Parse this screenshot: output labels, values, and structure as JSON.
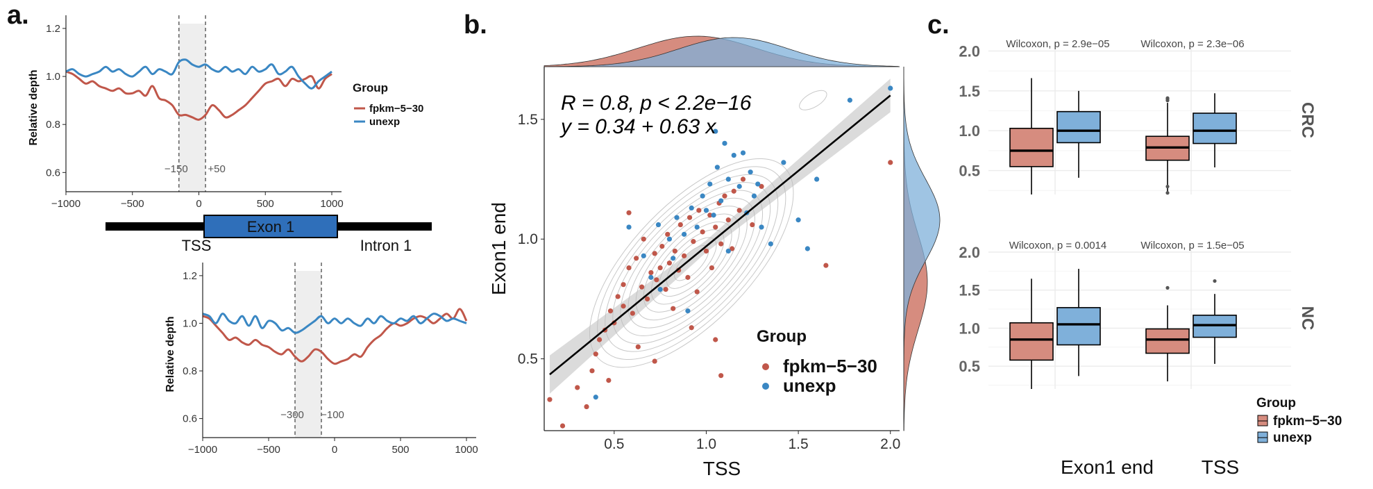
{
  "figure": {
    "panel_labels": [
      "a.",
      "b.",
      "c."
    ]
  },
  "colors": {
    "red": "#c0574a",
    "red_fill": "#d68c7f",
    "blue": "#3a87c3",
    "blue_fill": "#7fb0da",
    "overlap_fill": "#6f7fa8",
    "shade": "#eeeeee",
    "grid": "#ebebeb",
    "contour": "#c8c8c8",
    "exon_box": "#2f6fba"
  },
  "panel_a": {
    "ylabel": "Relative depth",
    "xticks": [
      "−1000",
      "−500",
      "0",
      "500",
      "1000"
    ],
    "yticks": [
      "0.6",
      "0.8",
      "1.0",
      "1.2"
    ],
    "legend": {
      "title": "Group",
      "items": [
        "fpkm−5−30",
        "unexp"
      ]
    },
    "gene_model": {
      "exon": "Exon 1",
      "tss": "TSS",
      "intron": "Intron 1"
    },
    "top_window_labels": [
      "−150",
      "+50"
    ],
    "bottom_window_labels": [
      "−300",
      "−100"
    ]
  },
  "panel_b": {
    "annotation_line1": "R = 0.8, p < 2.2e−16",
    "annotation_line2": "y = 0.34 + 0.63 x",
    "xlabel": "TSS",
    "ylabel": "Exon1 end",
    "xticks": [
      "0.5",
      "1.0",
      "1.5",
      "2.0"
    ],
    "yticks": [
      "0.5",
      "1.0",
      "1.5"
    ],
    "legend": {
      "title": "Group",
      "items": [
        "fpkm−5−30",
        "unexp"
      ]
    }
  },
  "panel_c": {
    "yticks": [
      "0.5",
      "1.0",
      "1.5",
      "2.0"
    ],
    "xticks": [
      "Exon1 end",
      "TSS"
    ],
    "facets": [
      "CRC",
      "NC"
    ],
    "pvalues_top": [
      "Wilcoxon, p = 2.9e−05",
      "Wilcoxon, p = 2.3e−06"
    ],
    "pvalues_bottom": [
      "Wilcoxon, p = 0.0014",
      "Wilcoxon, p = 1.5e−05"
    ],
    "legend": {
      "title": "Group",
      "items": [
        "fpkm−5−30",
        "unexp"
      ]
    }
  },
  "chart_data": [
    {
      "type": "line",
      "panel": "a-top",
      "ylabel": "Relative depth",
      "xlim": [
        -1000,
        1000
      ],
      "ylim": [
        0.52,
        1.22
      ],
      "shaded_window": [
        -150,
        50
      ],
      "x": [
        -1000,
        -950,
        -900,
        -850,
        -800,
        -750,
        -700,
        -650,
        -600,
        -550,
        -500,
        -450,
        -400,
        -350,
        -300,
        -250,
        -200,
        -150,
        -100,
        -50,
        0,
        50,
        100,
        150,
        200,
        250,
        300,
        350,
        400,
        450,
        500,
        550,
        600,
        650,
        700,
        750,
        800,
        850,
        900,
        950,
        1000
      ],
      "series": [
        {
          "name": "fpkm−5−30",
          "values": [
            1.02,
            1.01,
            0.99,
            0.97,
            0.98,
            0.96,
            0.95,
            0.94,
            0.95,
            0.93,
            0.93,
            0.94,
            0.92,
            0.96,
            0.91,
            0.9,
            0.88,
            0.84,
            0.84,
            0.83,
            0.82,
            0.84,
            0.88,
            0.86,
            0.83,
            0.84,
            0.86,
            0.88,
            0.91,
            0.94,
            0.97,
            0.98,
            0.99,
            0.96,
            0.99,
            0.98,
            0.99,
            1.0,
            0.95,
            0.99,
            1.01
          ]
        },
        {
          "name": "unexp",
          "values": [
            1.02,
            1.03,
            1.01,
            1.0,
            1.01,
            1.02,
            1.04,
            1.02,
            1.03,
            1.01,
            1.0,
            1.02,
            1.04,
            1.01,
            1.03,
            1.02,
            1.01,
            1.06,
            1.07,
            1.05,
            1.04,
            1.05,
            1.03,
            1.02,
            1.04,
            1.02,
            1.03,
            1.01,
            1.04,
            1.02,
            1.03,
            1.05,
            1.01,
            1.02,
            1.04,
            1.0,
            0.97,
            0.95,
            0.98,
            1.0,
            1.02
          ]
        }
      ]
    },
    {
      "type": "line",
      "panel": "a-bottom",
      "ylabel": "Relative depth",
      "xlim": [
        -1000,
        1000
      ],
      "ylim": [
        0.52,
        1.22
      ],
      "shaded_window": [
        -300,
        -100
      ],
      "x": [
        -1000,
        -950,
        -900,
        -850,
        -800,
        -750,
        -700,
        -650,
        -600,
        -550,
        -500,
        -450,
        -400,
        -350,
        -300,
        -250,
        -200,
        -150,
        -100,
        -50,
        0,
        50,
        100,
        150,
        200,
        250,
        300,
        350,
        400,
        450,
        500,
        550,
        600,
        650,
        700,
        750,
        800,
        850,
        900,
        950,
        1000
      ],
      "series": [
        {
          "name": "fpkm−5−30",
          "values": [
            1.03,
            1.02,
            0.99,
            0.96,
            0.93,
            0.94,
            0.92,
            0.91,
            0.93,
            0.91,
            0.9,
            0.88,
            0.87,
            0.89,
            0.86,
            0.84,
            0.86,
            0.89,
            0.88,
            0.85,
            0.83,
            0.84,
            0.85,
            0.87,
            0.86,
            0.9,
            0.93,
            0.95,
            0.98,
            1.0,
            0.99,
            1.0,
            1.02,
            1.03,
            1.02,
            1.0,
            1.02,
            1.04,
            1.02,
            1.06,
            1.01
          ]
        },
        {
          "name": "unexp",
          "values": [
            1.04,
            1.03,
            1.0,
            1.04,
            1.01,
            1.0,
            1.03,
            0.99,
            1.03,
            0.98,
            1.01,
            1.0,
            0.97,
            0.98,
            0.96,
            0.97,
            0.99,
            1.01,
            1.03,
            1.0,
            1.02,
            1.0,
            1.02,
            1.0,
            0.99,
            1.02,
            1.0,
            1.03,
            1.01,
            1.0,
            1.02,
            1.01,
            1.03,
            1.0,
            1.02,
            1.04,
            1.03,
            1.01,
            1.02,
            1.01,
            1.0
          ]
        }
      ]
    },
    {
      "type": "scatter",
      "panel": "b",
      "xlabel": "TSS",
      "ylabel": "Exon1 end",
      "xlim": [
        0.12,
        2.05
      ],
      "ylim": [
        0.2,
        1.72
      ],
      "regression": {
        "intercept": 0.34,
        "slope": 0.63
      },
      "series": [
        {
          "name": "fpkm−5−30",
          "points": [
            [
              0.15,
              0.33
            ],
            [
              0.22,
              0.22
            ],
            [
              0.35,
              0.3
            ],
            [
              0.38,
              0.45
            ],
            [
              0.42,
              0.58
            ],
            [
              0.45,
              0.62
            ],
            [
              0.48,
              0.7
            ],
            [
              0.5,
              0.65
            ],
            [
              0.52,
              0.76
            ],
            [
              0.55,
              0.81
            ],
            [
              0.55,
              0.72
            ],
            [
              0.58,
              0.88
            ],
            [
              0.6,
              0.69
            ],
            [
              0.62,
              0.92
            ],
            [
              0.63,
              0.55
            ],
            [
              0.65,
              0.8
            ],
            [
              0.66,
              1.0
            ],
            [
              0.68,
              0.75
            ],
            [
              0.7,
              0.86
            ],
            [
              0.72,
              0.94
            ],
            [
              0.73,
              0.83
            ],
            [
              0.75,
              0.88
            ],
            [
              0.76,
              0.97
            ],
            [
              0.78,
              0.79
            ],
            [
              0.79,
              1.02
            ],
            [
              0.8,
              0.9
            ],
            [
              0.82,
              0.71
            ],
            [
              0.83,
              0.95
            ],
            [
              0.85,
              0.87
            ],
            [
              0.86,
              1.06
            ],
            [
              0.88,
              0.93
            ],
            [
              0.9,
              0.84
            ],
            [
              0.91,
              1.09
            ],
            [
              0.93,
              0.99
            ],
            [
              0.95,
              0.78
            ],
            [
              0.96,
              1.12
            ],
            [
              0.98,
              1.03
            ],
            [
              1.0,
              0.95
            ],
            [
              1.02,
              1.1
            ],
            [
              1.03,
              0.88
            ],
            [
              1.05,
              1.05
            ],
            [
              1.07,
              1.15
            ],
            [
              1.08,
              0.98
            ],
            [
              1.1,
              1.18
            ],
            [
              1.12,
              1.08
            ],
            [
              1.14,
              0.96
            ],
            [
              1.15,
              1.2
            ],
            [
              1.18,
              1.12
            ],
            [
              1.2,
              1.25
            ],
            [
              1.25,
              1.06
            ],
            [
              1.3,
              1.22
            ],
            [
              0.58,
              1.11
            ],
            [
              0.47,
              0.41
            ],
            [
              0.72,
              0.49
            ],
            [
              1.08,
              0.43
            ],
            [
              1.65,
              0.89
            ],
            [
              2.0,
              1.32
            ],
            [
              0.92,
              0.63
            ],
            [
              1.05,
              0.58
            ],
            [
              0.3,
              0.38
            ],
            [
              0.4,
              0.52
            ]
          ]
        },
        {
          "name": "unexp",
          "points": [
            [
              0.4,
              0.34
            ],
            [
              0.58,
              1.05
            ],
            [
              0.66,
              0.93
            ],
            [
              0.74,
              1.06
            ],
            [
              0.8,
              1.0
            ],
            [
              0.84,
              1.09
            ],
            [
              0.88,
              1.02
            ],
            [
              0.92,
              1.13
            ],
            [
              0.95,
              1.05
            ],
            [
              0.98,
              1.18
            ],
            [
              1.0,
              1.12
            ],
            [
              1.02,
              1.23
            ],
            [
              1.04,
              1.1
            ],
            [
              1.06,
              1.3
            ],
            [
              1.08,
              1.16
            ],
            [
              1.1,
              1.4
            ],
            [
              1.12,
              1.25
            ],
            [
              1.15,
              1.35
            ],
            [
              1.18,
              1.22
            ],
            [
              1.2,
              1.36
            ],
            [
              1.22,
              1.11
            ],
            [
              1.24,
              1.28
            ],
            [
              1.26,
              1.18
            ],
            [
              1.28,
              1.23
            ],
            [
              1.3,
              1.05
            ],
            [
              1.35,
              0.98
            ],
            [
              1.42,
              1.32
            ],
            [
              1.5,
              1.08
            ],
            [
              1.55,
              0.96
            ],
            [
              1.6,
              1.25
            ],
            [
              1.78,
              1.58
            ],
            [
              2.0,
              1.63
            ],
            [
              1.05,
              1.45
            ],
            [
              0.9,
              0.7
            ],
            [
              0.82,
              0.92
            ],
            [
              0.75,
              0.79
            ],
            [
              0.7,
              0.84
            ],
            [
              1.12,
              0.95
            ]
          ]
        }
      ]
    },
    {
      "type": "box",
      "panel": "c",
      "facets": [
        "CRC",
        "NC"
      ],
      "categories": [
        "Exon1 end",
        "TSS"
      ],
      "groups": [
        "fpkm−5−30",
        "unexp"
      ],
      "ylim": [
        0.2,
        2.1
      ],
      "boxes": {
        "CRC": [
          {
            "category": "Exon1 end",
            "group": "fpkm−5−30",
            "min": 0.2,
            "q1": 0.55,
            "median": 0.75,
            "q3": 1.03,
            "max": 1.66,
            "outliers": []
          },
          {
            "category": "Exon1 end",
            "group": "unexp",
            "min": 0.41,
            "q1": 0.85,
            "median": 1.0,
            "q3": 1.24,
            "max": 1.5,
            "outliers": []
          },
          {
            "category": "TSS",
            "group": "fpkm−5−30",
            "min": 0.22,
            "q1": 0.63,
            "median": 0.79,
            "q3": 0.93,
            "max": 1.35,
            "outliers": [
              1.38,
              1.4,
              1.41,
              0.3,
              0.22
            ]
          },
          {
            "category": "TSS",
            "group": "unexp",
            "min": 0.54,
            "q1": 0.84,
            "median": 1.0,
            "q3": 1.22,
            "max": 1.47,
            "outliers": []
          }
        ],
        "NC": [
          {
            "category": "Exon1 end",
            "group": "fpkm−5−30",
            "min": 0.2,
            "q1": 0.58,
            "median": 0.85,
            "q3": 1.07,
            "max": 1.65,
            "outliers": []
          },
          {
            "category": "Exon1 end",
            "group": "unexp",
            "min": 0.37,
            "q1": 0.78,
            "median": 1.05,
            "q3": 1.27,
            "max": 1.78,
            "outliers": []
          },
          {
            "category": "TSS",
            "group": "fpkm−5−30",
            "min": 0.3,
            "q1": 0.67,
            "median": 0.85,
            "q3": 0.99,
            "max": 1.3,
            "outliers": [
              1.53
            ]
          },
          {
            "category": "TSS",
            "group": "unexp",
            "min": 0.53,
            "q1": 0.88,
            "median": 1.04,
            "q3": 1.17,
            "max": 1.45,
            "outliers": [
              1.62
            ]
          }
        ]
      }
    }
  ]
}
